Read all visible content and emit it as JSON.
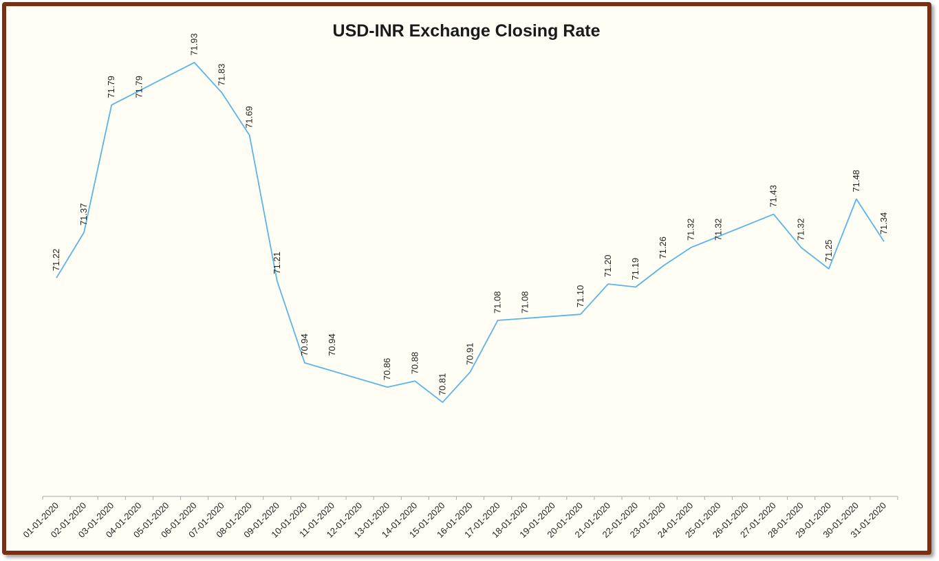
{
  "chart_data": {
    "type": "line",
    "title": "USD-INR Exchange Closing Rate",
    "xlabel": "",
    "ylabel": "",
    "ylim": [
      70.5,
      72.0
    ],
    "grid": false,
    "categories": [
      "01-01-2020",
      "02-01-2020",
      "03-01-2020",
      "04-01-2020",
      "05-01-2020",
      "06-01-2020",
      "07-01-2020",
      "08-01-2020",
      "09-01-2020",
      "10-01-2020",
      "11-01-2020",
      "12-01-2020",
      "13-01-2020",
      "14-01-2020",
      "15-01-2020",
      "16-01-2020",
      "17-01-2020",
      "18-01-2020",
      "19-01-2020",
      "20-01-2020",
      "21-01-2020",
      "22-01-2020",
      "23-01-2020",
      "24-01-2020",
      "25-01-2020",
      "26-01-2020",
      "27-01-2020",
      "28-01-2020",
      "29-01-2020",
      "30-01-2020",
      "31-01-2020"
    ],
    "points": [
      {
        "date": "01-01-2020",
        "value": 71.22,
        "label": "71.22"
      },
      {
        "date": "02-01-2020",
        "value": 71.37,
        "label": "71.37"
      },
      {
        "date": "03-01-2020",
        "value": 71.79,
        "label": "71.79"
      },
      {
        "date": "06-01-2020",
        "value": 71.93,
        "label": "71.93"
      },
      {
        "date": "07-01-2020",
        "value": 71.83,
        "label": "71.83"
      },
      {
        "date": "08-01-2020",
        "value": 71.69,
        "label": "71.69"
      },
      {
        "date": "09-01-2020",
        "value": 71.21,
        "label": "71.21"
      },
      {
        "date": "10-01-2020",
        "value": 70.94,
        "label": "70.94"
      },
      {
        "date": "13-01-2020",
        "value": 70.86,
        "label": "70.86"
      },
      {
        "date": "14-01-2020",
        "value": 70.88,
        "label": "70.88"
      },
      {
        "date": "15-01-2020",
        "value": 70.81,
        "label": "70.81"
      },
      {
        "date": "16-01-2020",
        "value": 70.91,
        "label": "70.91"
      },
      {
        "date": "17-01-2020",
        "value": 71.08,
        "label": "71.08"
      },
      {
        "date": "20-01-2020",
        "value": 71.1,
        "label": "71.10"
      },
      {
        "date": "21-01-2020",
        "value": 71.2,
        "label": "71.20"
      },
      {
        "date": "22-01-2020",
        "value": 71.19,
        "label": "71.19"
      },
      {
        "date": "23-01-2020",
        "value": 71.26,
        "label": "71.26"
      },
      {
        "date": "24-01-2020",
        "value": 71.32,
        "label": "71.32"
      },
      {
        "date": "27-01-2020",
        "value": 71.43,
        "label": "71.43"
      },
      {
        "date": "28-01-2020",
        "value": 71.32,
        "label": "71.32"
      },
      {
        "date": "29-01-2020",
        "value": 71.25,
        "label": "71.25"
      },
      {
        "date": "30-01-2020",
        "value": 71.48,
        "label": "71.48"
      },
      {
        "date": "31-01-2020",
        "value": 71.34,
        "label": "71.34"
      }
    ],
    "flat_labels": [
      {
        "date": "04-01-2020",
        "label": "71.79"
      },
      {
        "date": "11-01-2020",
        "label": "70.94"
      },
      {
        "date": "18-01-2020",
        "label": "71.08"
      },
      {
        "date": "25-01-2020",
        "label": "71.32"
      }
    ],
    "colors": {
      "line": "#5ab4e8",
      "border": "#7a2e12",
      "background": "#fffdf4",
      "axis": "#a8a8a8"
    }
  }
}
